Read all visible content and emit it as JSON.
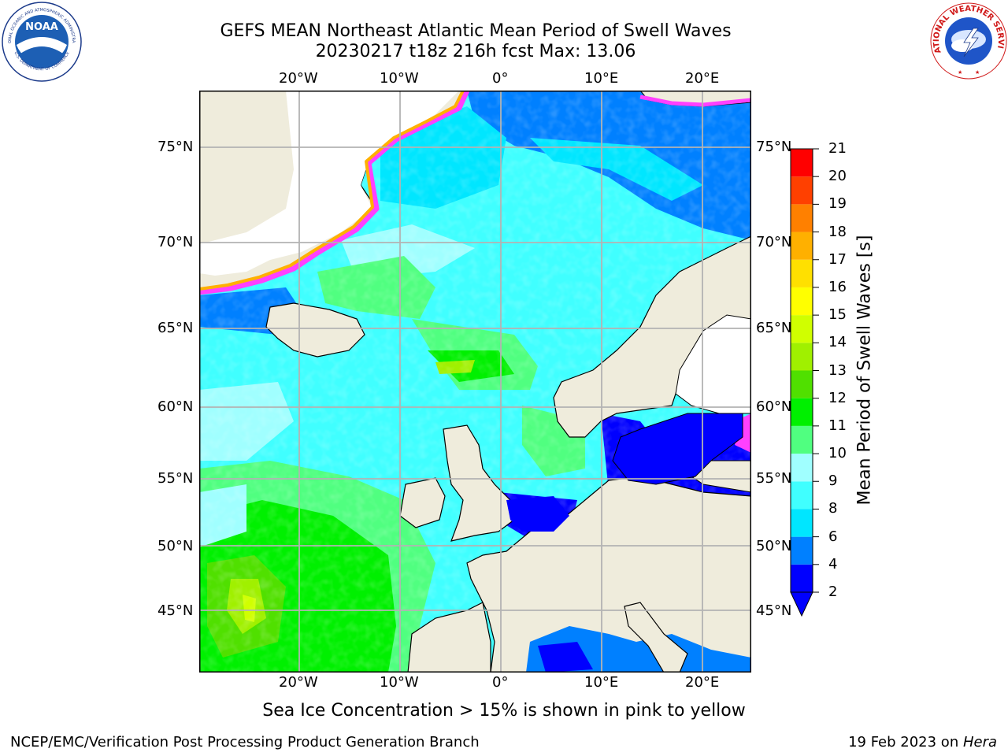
{
  "header": {
    "title_line1": "GEFS MEAN Northeast Atlantic Mean Period of Swell Waves",
    "title_line2": "20230217 t18z 216h fcst   Max: 13.06"
  },
  "map": {
    "lon_labels_top": [
      "20°W",
      "10°W",
      "0°",
      "10°E",
      "20°E"
    ],
    "lon_labels_bottom": [
      "20°W",
      "10°W",
      "0°",
      "10°E",
      "20°E"
    ],
    "lat_labels_left": [
      "75°N",
      "70°N",
      "65°N",
      "60°N",
      "55°N",
      "50°N",
      "45°N"
    ],
    "lat_labels_right": [
      "75°N",
      "70°N",
      "65°N",
      "60°N",
      "55°N",
      "50°N",
      "45°N"
    ],
    "colors": {
      "land": "#efecdc",
      "ice_free_white": "#ffffff",
      "grid": "#b3b3b3",
      "coast": "#000000"
    }
  },
  "colorbar": {
    "title": "Mean Period of Swell Waves [s]",
    "ticks": [
      "2",
      "4",
      "6",
      "8",
      "9",
      "10",
      "11",
      "12",
      "13",
      "14",
      "15",
      "16",
      "17",
      "18",
      "19",
      "20",
      "21"
    ],
    "colors": [
      "#0000ff",
      "#0080ff",
      "#00e6ff",
      "#40ffff",
      "#a0ffff",
      "#50ff80",
      "#00f000",
      "#50e000",
      "#a0f000",
      "#d0ff00",
      "#ffff00",
      "#ffe000",
      "#ffb000",
      "#ff8000",
      "#ff4000",
      "#ff0000"
    ]
  },
  "note": "Sea Ice Concentration > 15% is shown in pink to yellow",
  "footer": {
    "left": "NCEP/EMC/Verification Post Processing Product Generation Branch",
    "right_prefix": "19 Feb 2023 on ",
    "right_host": "Hera"
  },
  "logos": {
    "noaa_text": "NOAA",
    "noaa_ring_text": "NATIONAL OCEANIC AND ATMOSPHERIC ADMINISTRATION",
    "noaa_ring_bottom": "U.S. DEPARTMENT OF COMMERCE",
    "nws_ring_text": "NATIONAL WEATHER SERVICE"
  }
}
